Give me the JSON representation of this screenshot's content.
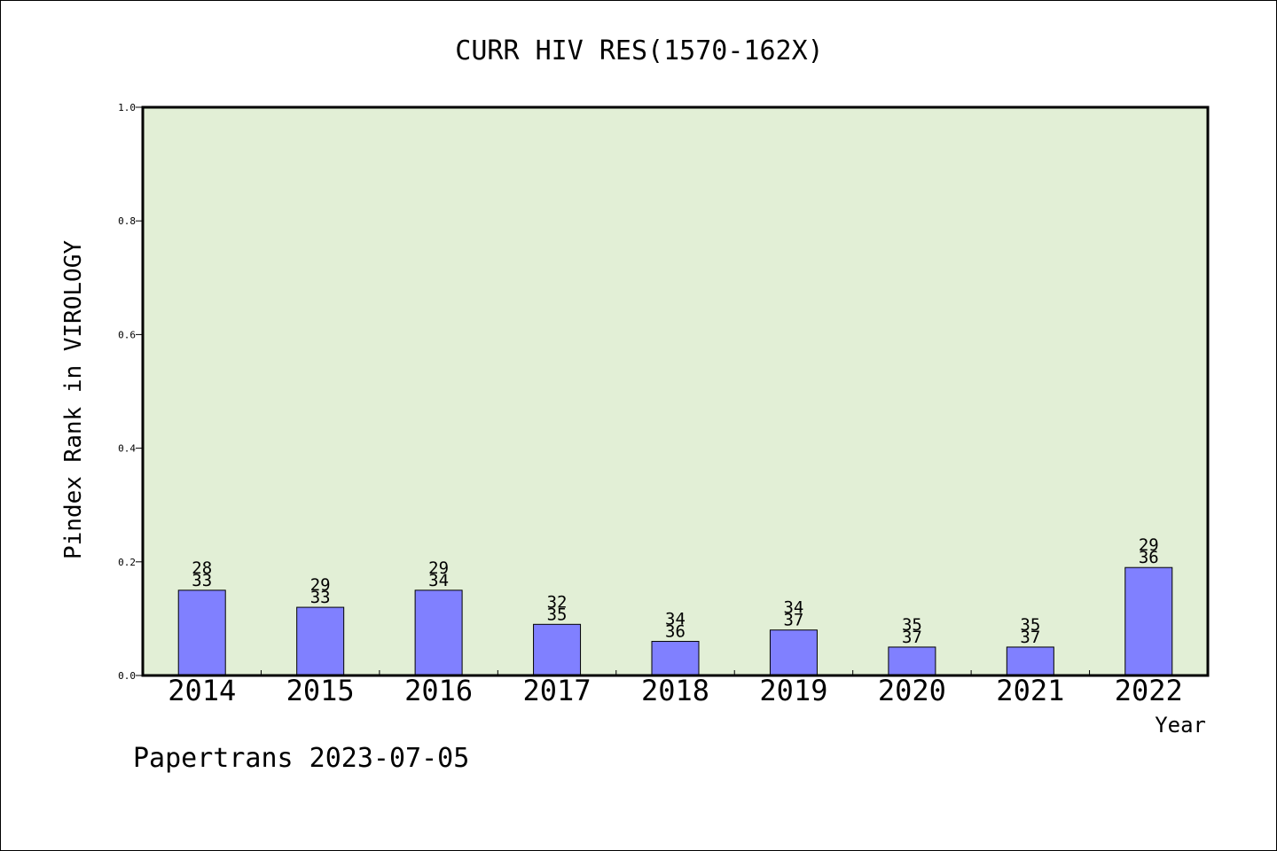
{
  "chart_data": {
    "type": "bar",
    "title": "CURR HIV RES(1570-162X)",
    "xlabel": "Year",
    "ylabel": "Pindex Rank in VIROLOGY",
    "footer": "Papertrans 2023-07-05",
    "categories": [
      "2014",
      "2015",
      "2016",
      "2017",
      "2018",
      "2019",
      "2020",
      "2021",
      "2022"
    ],
    "series": [
      {
        "values": [
          0.15,
          0.12,
          0.15,
          0.09,
          0.06,
          0.08,
          0.05,
          0.05,
          0.19
        ]
      }
    ],
    "bar_labels": [
      [
        "28",
        "33"
      ],
      [
        "29",
        "33"
      ],
      [
        "29",
        "34"
      ],
      [
        "32",
        "35"
      ],
      [
        "34",
        "36"
      ],
      [
        "34",
        "37"
      ],
      [
        "35",
        "37"
      ],
      [
        "35",
        "37"
      ],
      [
        "29",
        "36"
      ]
    ],
    "ylim": [
      0.0,
      1.0
    ],
    "yticks": [
      "0.0",
      "0.2",
      "0.4",
      "0.6",
      "0.8",
      "1.0"
    ],
    "grid": false,
    "colors": {
      "plot_background": "#e2efd6",
      "bar_fill": "#8080ff",
      "bar_stroke": "#000000",
      "axis": "#000000"
    }
  }
}
